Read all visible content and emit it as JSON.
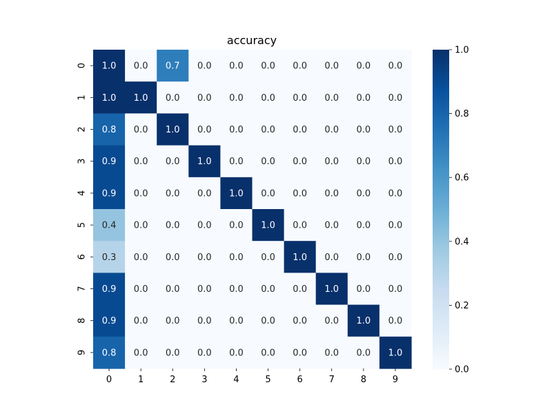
{
  "chart_data": {
    "type": "heatmap",
    "title": "accuracy",
    "xlabel": "",
    "ylabel": "",
    "x_categories": [
      "0",
      "1",
      "2",
      "3",
      "4",
      "5",
      "6",
      "7",
      "8",
      "9"
    ],
    "y_categories": [
      "0",
      "1",
      "2",
      "3",
      "4",
      "5",
      "6",
      "7",
      "8",
      "9"
    ],
    "values": [
      [
        1.0,
        0.0,
        0.7,
        0.0,
        0.0,
        0.0,
        0.0,
        0.0,
        0.0,
        0.0
      ],
      [
        1.0,
        1.0,
        0.0,
        0.0,
        0.0,
        0.0,
        0.0,
        0.0,
        0.0,
        0.0
      ],
      [
        0.8,
        0.0,
        1.0,
        0.0,
        0.0,
        0.0,
        0.0,
        0.0,
        0.0,
        0.0
      ],
      [
        0.9,
        0.0,
        0.0,
        1.0,
        0.0,
        0.0,
        0.0,
        0.0,
        0.0,
        0.0
      ],
      [
        0.9,
        0.0,
        0.0,
        0.0,
        1.0,
        0.0,
        0.0,
        0.0,
        0.0,
        0.0
      ],
      [
        0.4,
        0.0,
        0.0,
        0.0,
        0.0,
        1.0,
        0.0,
        0.0,
        0.0,
        0.0
      ],
      [
        0.3,
        0.0,
        0.0,
        0.0,
        0.0,
        0.0,
        1.0,
        0.0,
        0.0,
        0.0
      ],
      [
        0.9,
        0.0,
        0.0,
        0.0,
        0.0,
        0.0,
        0.0,
        1.0,
        0.0,
        0.0
      ],
      [
        0.9,
        0.0,
        0.0,
        0.0,
        0.0,
        0.0,
        0.0,
        0.0,
        1.0,
        0.0
      ],
      [
        0.8,
        0.0,
        0.0,
        0.0,
        0.0,
        0.0,
        0.0,
        0.0,
        0.0,
        1.0
      ]
    ],
    "value_format": "0.0",
    "colormap": "Blues",
    "colorbar": {
      "range": [
        0.0,
        1.0
      ],
      "ticks": [
        0.0,
        0.2,
        0.4,
        0.6,
        0.8,
        1.0
      ],
      "tick_labels": [
        "0.0",
        "0.2",
        "0.4",
        "0.6",
        "0.8",
        "1.0"
      ]
    },
    "grid": false,
    "legend": "colorbar-right"
  }
}
